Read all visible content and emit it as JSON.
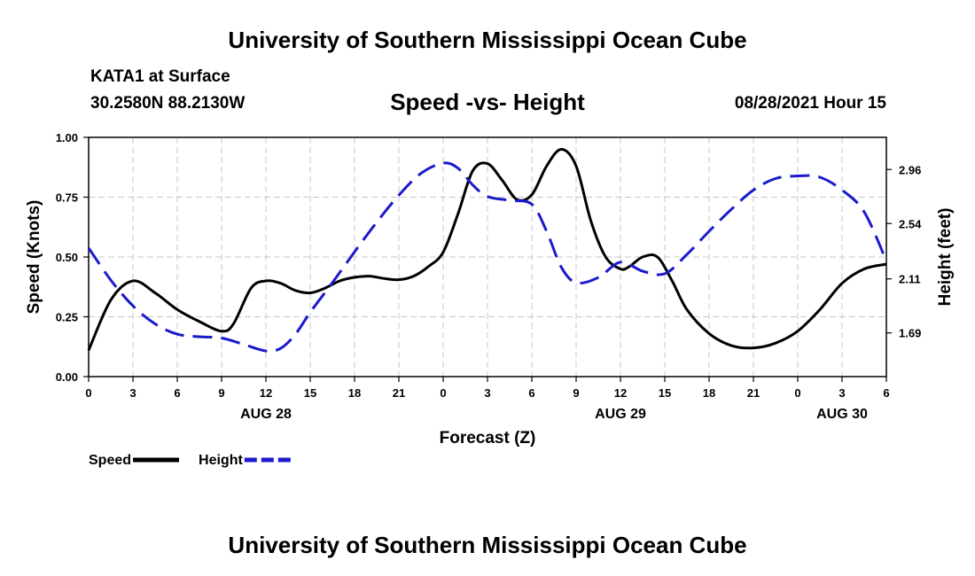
{
  "header": {
    "title_top": "University of Southern Mississippi Ocean Cube",
    "station": "KATA1 at Surface",
    "coords": "30.2580N  88.2130W",
    "subtitle": "Speed -vs- Height",
    "datetime": "08/28/2021 Hour 15",
    "title_bottom": "University of Southern Mississippi Ocean Cube"
  },
  "chart_data": {
    "type": "line",
    "title": "Speed -vs- Height",
    "xlabel": "Forecast (Z)",
    "ylabel": "Speed (Knots)",
    "y2label": "Height (feet)",
    "xlim": [
      0,
      54
    ],
    "ylim": [
      0,
      1
    ],
    "y2lim": [
      1.35,
      3.21
    ],
    "x_ticks": [
      0,
      3,
      6,
      9,
      12,
      15,
      18,
      21,
      24,
      27,
      30,
      33,
      36,
      39,
      42,
      45,
      48,
      51,
      54
    ],
    "x_tick_labels": [
      "0",
      "3",
      "6",
      "9",
      "12",
      "15",
      "18",
      "21",
      "0",
      "3",
      "6",
      "9",
      "12",
      "15",
      "18",
      "21",
      "0",
      "3",
      "6"
    ],
    "y_ticks": [
      0,
      0.25,
      0.5,
      0.75,
      1
    ],
    "y_tick_labels": [
      "0.00",
      "0.25",
      "0.50",
      "0.75",
      "1.00"
    ],
    "y2_ticks": [
      1.69,
      2.11,
      2.54,
      2.96
    ],
    "y2_tick_labels": [
      "1.69",
      "2.11",
      "2.54",
      "2.96"
    ],
    "date_labels": [
      {
        "x": 12,
        "label": "AUG 28"
      },
      {
        "x": 36,
        "label": "AUG 29"
      },
      {
        "x": 51,
        "label": "AUG 30"
      }
    ],
    "grid": true,
    "legend": "bottom-left",
    "series": [
      {
        "name": "Speed",
        "axis": "left",
        "color": "#000000",
        "dash": "solid",
        "x": [
          0,
          1.5,
          3,
          4.5,
          6,
          7.5,
          9,
          9.8,
          11,
          12,
          13,
          14,
          15,
          16,
          17,
          18,
          19,
          20,
          21,
          22,
          23,
          24,
          25,
          26,
          27,
          28,
          29,
          30,
          31,
          32,
          33,
          34,
          35,
          36,
          36.6,
          37.5,
          38.5,
          39.5,
          40.5,
          42,
          43.5,
          45,
          46.5,
          48,
          49.5,
          51,
          52.5,
          54
        ],
        "y": [
          0.11,
          0.32,
          0.4,
          0.35,
          0.28,
          0.23,
          0.19,
          0.22,
          0.37,
          0.4,
          0.39,
          0.36,
          0.35,
          0.37,
          0.4,
          0.415,
          0.42,
          0.41,
          0.405,
          0.42,
          0.46,
          0.52,
          0.68,
          0.86,
          0.89,
          0.82,
          0.74,
          0.76,
          0.88,
          0.95,
          0.88,
          0.65,
          0.5,
          0.45,
          0.46,
          0.5,
          0.5,
          0.4,
          0.28,
          0.18,
          0.13,
          0.12,
          0.14,
          0.19,
          0.28,
          0.39,
          0.45,
          0.47
        ]
      },
      {
        "name": "Height",
        "axis": "right",
        "color": "#1a1acc",
        "dash": "dashed",
        "x": [
          0,
          1.5,
          3,
          4.5,
          6,
          7.5,
          9,
          10.5,
          12,
          13,
          14,
          15,
          16.5,
          18,
          19.5,
          21,
          22.5,
          24,
          25,
          26,
          27,
          28.5,
          30,
          31,
          32,
          33,
          34.5,
          36,
          37.5,
          39,
          40.5,
          42,
          43.5,
          45,
          46.5,
          48,
          49.5,
          51,
          52.5,
          54
        ],
        "y": [
          2.35,
          2.1,
          1.9,
          1.76,
          1.68,
          1.66,
          1.65,
          1.6,
          1.55,
          1.57,
          1.68,
          1.85,
          2.08,
          2.32,
          2.55,
          2.76,
          2.93,
          3.01,
          2.97,
          2.84,
          2.75,
          2.72,
          2.69,
          2.48,
          2.2,
          2.08,
          2.12,
          2.24,
          2.17,
          2.15,
          2.3,
          2.48,
          2.65,
          2.8,
          2.89,
          2.91,
          2.9,
          2.8,
          2.63,
          2.25
        ]
      }
    ]
  }
}
